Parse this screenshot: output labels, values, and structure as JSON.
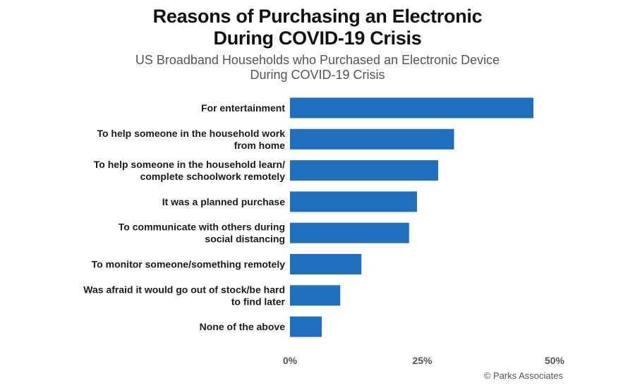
{
  "chart_data": {
    "type": "bar",
    "orientation": "horizontal",
    "title_lines": [
      "Reasons of Purchasing an Electronic",
      "During COVID-19 Crisis"
    ],
    "subtitle_lines": [
      "US Broadband Households who Purchased an Electronic Device",
      "During COVID-19 Crisis"
    ],
    "categories": [
      [
        "For entertainment"
      ],
      [
        "To help someone in the household work",
        "from home"
      ],
      [
        "To help someone in the household learn/",
        "complete schoolwork remotely"
      ],
      [
        "It was a planned purchase"
      ],
      [
        "To communicate with others during",
        "social distancing"
      ],
      [
        "To monitor someone/something remotely"
      ],
      [
        "Was afraid it would go out of stock/be hard",
        "to find later"
      ],
      [
        "None of the above"
      ]
    ],
    "values": [
      46,
      31,
      28,
      24,
      22.5,
      13.5,
      9.5,
      6
    ],
    "unit": "%",
    "xlim": [
      0,
      50
    ],
    "ticks": [
      "0%",
      "25%",
      "50%"
    ],
    "tick_values": [
      0,
      25,
      50
    ],
    "bar_color": "#1f6fbf",
    "grid": false,
    "legend": "none",
    "source": "© Parks Associates"
  }
}
